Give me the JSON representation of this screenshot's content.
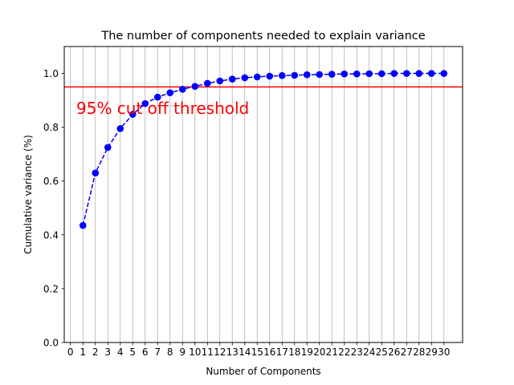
{
  "chart_data": {
    "type": "line",
    "title": "The number of components needed to explain variance",
    "xlabel": "Number of Components",
    "ylabel": "Cumulative variance (%)",
    "xlim": [
      -0.5,
      31.5
    ],
    "ylim": [
      0.0,
      1.1
    ],
    "xticks": [
      0,
      1,
      2,
      3,
      4,
      5,
      6,
      7,
      8,
      9,
      10,
      11,
      12,
      13,
      14,
      15,
      16,
      17,
      18,
      19,
      20,
      21,
      22,
      23,
      24,
      25,
      26,
      27,
      28,
      29,
      30
    ],
    "yticks": [
      0.0,
      0.2,
      0.4,
      0.6,
      0.8,
      1.0
    ],
    "ytick_labels": [
      "0.0",
      "0.2",
      "0.4",
      "0.6",
      "0.8",
      "1.0"
    ],
    "grid": "vertical",
    "series": [
      {
        "color": "#0000ff",
        "linestyle": "dashed",
        "marker": "circle",
        "x": [
          1,
          2,
          3,
          4,
          5,
          6,
          7,
          8,
          9,
          10,
          11,
          12,
          13,
          14,
          15,
          16,
          17,
          18,
          19,
          20,
          21,
          22,
          23,
          24,
          25,
          26,
          27,
          28,
          29,
          30
        ],
        "y": [
          0.435,
          0.63,
          0.725,
          0.795,
          0.848,
          0.888,
          0.912,
          0.928,
          0.941,
          0.952,
          0.963,
          0.972,
          0.979,
          0.984,
          0.987,
          0.99,
          0.992,
          0.993,
          0.995,
          0.996,
          0.997,
          0.998,
          0.998,
          0.999,
          0.999,
          1.0,
          1.0,
          1.0,
          1.0,
          1.0
        ]
      }
    ],
    "threshold": {
      "y": 0.95,
      "color": "#ff0000",
      "label": "95% cut off threshold"
    }
  }
}
